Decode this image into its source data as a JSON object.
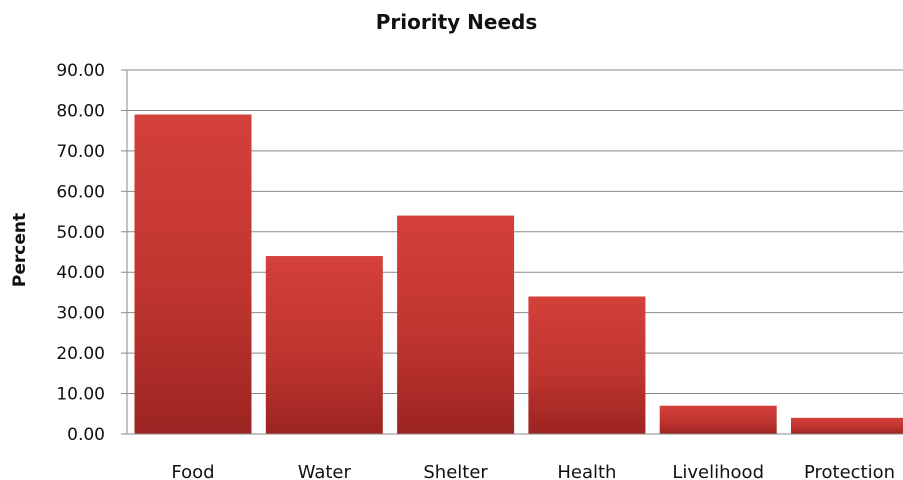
{
  "chart_data": {
    "type": "bar",
    "title": "Priority Needs",
    "xlabel": "",
    "ylabel": "Percent",
    "categories": [
      "Food",
      "Water",
      "Shelter",
      "Health",
      "Livelihood",
      "Protection"
    ],
    "values": [
      79.0,
      44.0,
      54.0,
      34.0,
      7.0,
      4.0
    ],
    "ylim": [
      0,
      90
    ],
    "yticks": [
      "0.00",
      "10.00",
      "20.00",
      "30.00",
      "40.00",
      "50.00",
      "60.00",
      "70.00",
      "80.00",
      "90.00"
    ],
    "grid": true,
    "legend": "none",
    "bar_color": "#c0392f"
  }
}
